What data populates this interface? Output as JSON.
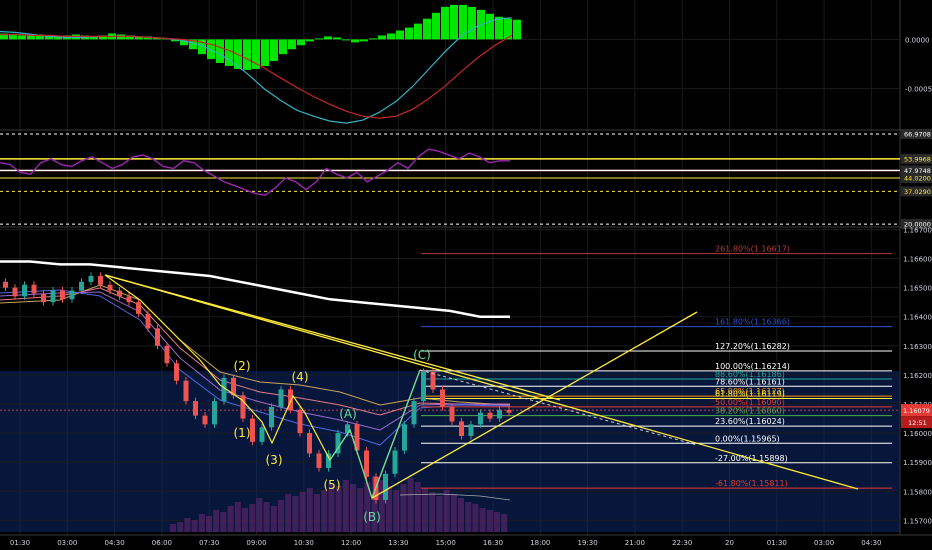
{
  "chart_data": [
    {
      "type": "bar",
      "panel": "macd",
      "ylim": [
        -0.0009,
        0.0004
      ],
      "ticks": [
        "0.0000",
        "-0.0005"
      ],
      "tick_values": [
        0.0,
        -0.0005
      ],
      "histogram": [
        6e-05,
        5e-05,
        4e-05,
        4e-05,
        5e-05,
        4e-05,
        3e-05,
        4e-05,
        5e-05,
        4e-05,
        3e-05,
        4e-05,
        6e-05,
        5e-05,
        4e-05,
        3e-05,
        3e-05,
        2e-05,
        1e-05,
        -2e-05,
        -6e-05,
        -0.0001,
        -0.00015,
        -0.0002,
        -0.00024,
        -0.00027,
        -0.0003,
        -0.00031,
        -0.0003,
        -0.00027,
        -0.00022,
        -0.00015,
        -0.0001,
        -6e-05,
        -2e-05,
        1e-05,
        3e-05,
        2e-05,
        -1e-05,
        -3e-05,
        -2e-05,
        1e-05,
        4e-05,
        6e-05,
        9e-05,
        0.00012,
        0.00016,
        0.00021,
        0.00027,
        0.00033,
        0.00035,
        0.00035,
        0.00033,
        0.0003,
        0.00026,
        0.00023,
        0.00021,
        0.0002
      ],
      "series": [
        {
          "values": [
            8e-05,
            7e-05,
            5e-05,
            3e-05,
            2e-05,
            2e-05,
            3e-05,
            3e-05,
            3e-05,
            2e-05,
            1e-05,
            -1e-05,
            -5e-05,
            -0.00012,
            -0.00022,
            -0.00035,
            -0.0005,
            -0.00062,
            -0.00072,
            -0.00078,
            -0.00083,
            -0.00085,
            -0.00082,
            -0.00074,
            -0.00063,
            -0.00048,
            -0.0003,
            -0.00012,
            4e-05,
            0.00014,
            0.0002,
            0.00022
          ]
        },
        {
          "values": [
            5e-05,
            5e-05,
            4e-05,
            4e-05,
            3e-05,
            3e-05,
            3e-05,
            3e-05,
            3e-05,
            2e-05,
            1e-05,
            0.0,
            -2e-05,
            -6e-05,
            -0.00012,
            -0.0002,
            -0.00029,
            -0.00039,
            -0.00049,
            -0.00058,
            -0.00066,
            -0.00073,
            -0.00078,
            -0.0008,
            -0.00078,
            -0.00071,
            -0.0006,
            -0.00047,
            -0.00032,
            -0.00018,
            -6e-05,
            4e-05
          ]
        }
      ]
    },
    {
      "type": "line",
      "panel": "rsi",
      "ylim": [
        19,
        68
      ],
      "levels": [
        "66.9708",
        "53.9968",
        "47.8882",
        "47.9748",
        "44.0200",
        "37.0290",
        "20.0000"
      ],
      "level_values": [
        66.9708,
        53.9968,
        47.8882,
        47.9748,
        44.02,
        37.029,
        20.0
      ],
      "level_colors": [
        "#ffffff",
        "#ffeb3b",
        "#e53935",
        "#ffffff",
        "#ffeb3b",
        "#ffeb3b",
        "#ffffff"
      ],
      "badge_bg": [
        "#2a2a2a",
        "#2a2a2a",
        "#e53935",
        "#2a2a2a",
        "#2a2a2a",
        "#2a2a2a",
        "#2a2a2a"
      ],
      "badge_fg": [
        "#ffffff",
        "#ffeb3b",
        "#ffffff",
        "#ffffff",
        "#ffeb3b",
        "#ffeb3b",
        "#ffffff"
      ],
      "series": [
        {
          "values": [
            52,
            51,
            47,
            46,
            52,
            54,
            51,
            50,
            53,
            55,
            52,
            49,
            51,
            55,
            56,
            54,
            50,
            49,
            53,
            52,
            48,
            45,
            42,
            40,
            38,
            36,
            35,
            39,
            44,
            42,
            38,
            42,
            49,
            46,
            44,
            47,
            42,
            45,
            48,
            52,
            49,
            55,
            59,
            58,
            56,
            54,
            57,
            55,
            52,
            53,
            53
          ]
        }
      ]
    },
    {
      "type": "candlestick",
      "panel": "price",
      "ylim": [
        1.1566,
        1.16705
      ],
      "ticks": [
        "1.16700",
        "1.16600",
        "1.16500",
        "1.16400",
        "1.16300",
        "1.16200",
        "1.16100",
        "1.16000",
        "1.15900",
        "1.15800",
        "1.15700"
      ],
      "tick_values": [
        1.167,
        1.166,
        1.165,
        1.164,
        1.163,
        1.162,
        1.161,
        1.16,
        1.159,
        1.158,
        1.157
      ],
      "x_ticks": [
        "01:30",
        "03:00",
        "04:30",
        "06:00",
        "07:30",
        "09:00",
        "10:30",
        "12:00",
        "13:30",
        "15:00",
        "16:30",
        "18:00",
        "19:30",
        "21:00",
        "22:30",
        "20",
        "01:30",
        "03:00",
        "04:30"
      ],
      "current_price": "1.16079",
      "countdown": "12:51",
      "candles": [
        [
          1.1652,
          1.165
        ],
        [
          1.165,
          1.1647
        ],
        [
          1.1647,
          1.1651
        ],
        [
          1.1651,
          1.1648
        ],
        [
          1.1648,
          1.1645
        ],
        [
          1.1645,
          1.1649
        ],
        [
          1.1649,
          1.1646
        ],
        [
          1.1646,
          1.1649
        ],
        [
          1.1649,
          1.1652
        ],
        [
          1.1652,
          1.1654
        ],
        [
          1.1654,
          1.1651
        ],
        [
          1.1651,
          1.1649
        ],
        [
          1.1649,
          1.1647
        ],
        [
          1.1647,
          1.1645
        ],
        [
          1.1645,
          1.1641
        ],
        [
          1.1641,
          1.1636
        ],
        [
          1.1636,
          1.163
        ],
        [
          1.163,
          1.1624
        ],
        [
          1.1624,
          1.1618
        ],
        [
          1.1618,
          1.1611
        ],
        [
          1.1611,
          1.1606
        ],
        [
          1.1606,
          1.1603
        ],
        [
          1.1603,
          1.1611
        ],
        [
          1.1611,
          1.1619
        ],
        [
          1.1619,
          1.1613
        ],
        [
          1.1613,
          1.1605
        ],
        [
          1.1605,
          1.1597
        ],
        [
          1.1597,
          1.1602
        ],
        [
          1.1602,
          1.1609
        ],
        [
          1.1609,
          1.1615
        ],
        [
          1.1615,
          1.1608
        ],
        [
          1.1608,
          1.16
        ],
        [
          1.16,
          1.1593
        ],
        [
          1.1593,
          1.1588
        ],
        [
          1.1588,
          1.1593
        ],
        [
          1.1593,
          1.16
        ],
        [
          1.16,
          1.1603
        ],
        [
          1.1603,
          1.1594
        ],
        [
          1.1594,
          1.1585
        ],
        [
          1.1585,
          1.1577
        ],
        [
          1.1577,
          1.1586
        ],
        [
          1.1586,
          1.1594
        ],
        [
          1.1594,
          1.1603
        ],
        [
          1.1603,
          1.1611
        ],
        [
          1.1611,
          1.1621
        ],
        [
          1.1621,
          1.1615
        ],
        [
          1.1615,
          1.1609
        ],
        [
          1.1609,
          1.1604
        ],
        [
          1.1604,
          1.1599
        ],
        [
          1.1599,
          1.1603
        ],
        [
          1.1603,
          1.1607
        ],
        [
          1.1607,
          1.1605
        ],
        [
          1.1605,
          1.1608
        ],
        [
          1.1608,
          1.1607
        ]
      ],
      "white_line": [
        1.1659,
        1.1659,
        1.1658,
        1.1658,
        1.1657,
        1.1656,
        1.1655,
        1.1654,
        1.1652,
        1.165,
        1.1648,
        1.1646,
        1.1645,
        1.1644,
        1.1643,
        1.1642,
        1.164,
        1.164
      ],
      "fib_levels": [
        {
          "label": "261.80%(1.16617)",
          "value": 1.16617,
          "color": "#b23a3a"
        },
        {
          "label": "161.80%(1.16366)",
          "value": 1.16366,
          "color": "#2f4fd0"
        },
        {
          "label": "127.20%(1.16282)",
          "value": 1.16282,
          "color": "#ffffff"
        },
        {
          "label": "100.00%(1.16214)",
          "value": 1.16214,
          "color": "#ffffff"
        },
        {
          "label": "88.60%(1.16186)",
          "value": 1.16186,
          "color": "#26a69a"
        },
        {
          "label": "78.60%(1.16161)",
          "value": 1.16161,
          "color": "#ffffff"
        },
        {
          "label": "65.00%(1.16127)",
          "value": 1.16127,
          "color": "#ff9800"
        },
        {
          "label": "61.80%(1.16119)",
          "value": 1.16119,
          "color": "#ffeb3b"
        },
        {
          "label": "50.00%(1.16090)",
          "value": 1.1609,
          "color": "#e53935"
        },
        {
          "label": "38.20%(1.16060)",
          "value": 1.1606,
          "color": "#4caf50"
        },
        {
          "label": "23.60%(1.16024)",
          "value": 1.16024,
          "color": "#ffffff"
        },
        {
          "label": "0.00%(1.15965)",
          "value": 1.15965,
          "color": "#ffffff"
        },
        {
          "label": "-27.00%(1.15898)",
          "value": 1.15898,
          "color": "#ffffff"
        },
        {
          "label": "-61.80%(1.15811)",
          "value": 1.15811,
          "color": "#e53935"
        }
      ],
      "wave_labels": [
        {
          "text": "(1)",
          "color": "#ffeb3b"
        },
        {
          "text": "(2)",
          "color": "#ffeb3b"
        },
        {
          "text": "(3)",
          "color": "#ffeb3b"
        },
        {
          "text": "(4)",
          "color": "#ffeb3b"
        },
        {
          "text": "(5)",
          "color": "#ffeb3b"
        },
        {
          "text": "(A)",
          "color": "#66e0a0"
        },
        {
          "text": "(B)",
          "color": "#66e0a0"
        },
        {
          "text": "(C)",
          "color": "#66e0a0"
        }
      ]
    }
  ]
}
